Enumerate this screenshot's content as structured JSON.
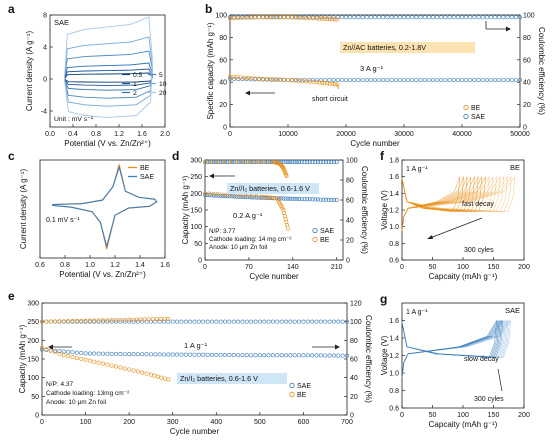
{
  "figure": {
    "panel_letters": [
      "a",
      "b",
      "c",
      "d",
      "e",
      "f",
      "g"
    ]
  },
  "colors": {
    "blue": "#3d7ebd",
    "blue_light": "#9cc3e6",
    "orange": "#e8901c",
    "orange_light": "#f3c27a",
    "label_box": "#fde3b2",
    "label_box_blue": "#cfe6f7"
  },
  "chart_data": [
    {
      "panel": "a",
      "type": "line",
      "xlabel": "Potential (V vs. Zn/Zn²⁺)",
      "ylabel": "Current density (A g⁻¹)",
      "xlim": [
        0.0,
        2.0
      ],
      "ylim": [
        -6,
        8
      ],
      "xticks": [
        "0.0",
        "0.4",
        "0.8",
        "1.2",
        "1.6",
        "2.0"
      ],
      "yticks": [
        "-4",
        "0",
        "4",
        "8"
      ],
      "tag": "SAE",
      "note": "Unit : mV s⁻¹",
      "legend": [
        "0.5",
        "1",
        "2",
        "5",
        "10",
        "20"
      ],
      "series": [
        {
          "name": "0.5",
          "upper": 0.6,
          "lower": -0.4
        },
        {
          "name": "1",
          "upper": 1.0,
          "lower": -0.8
        },
        {
          "name": "2",
          "upper": 1.6,
          "lower": -1.4
        },
        {
          "name": "5",
          "upper": 2.8,
          "lower": -2.4
        },
        {
          "name": "10",
          "upper": 4.2,
          "lower": -3.4
        },
        {
          "name": "20",
          "upper": 6.2,
          "lower": -4.8
        }
      ]
    },
    {
      "panel": "b",
      "type": "scatter",
      "xlabel": "Cycle number",
      "ylabel": "Specific capacity (mAh g⁻¹)",
      "ylabel_right": "Coulombic efficiency (%)",
      "xlim": [
        0,
        50000
      ],
      "ylim": [
        0,
        100
      ],
      "ylim_right": [
        0,
        100
      ],
      "xticks": [
        "0",
        "10000",
        "20000",
        "30000",
        "40000",
        "50000"
      ],
      "yticks": [
        "0",
        "20",
        "40",
        "60",
        "80",
        "100"
      ],
      "yticks_right": [
        "0",
        "20",
        "40",
        "60",
        "80",
        "100"
      ],
      "label_box": "Zn//AC batteries, 0.2-1.8V",
      "rate": "3 A g⁻¹",
      "annotation": "short circuit",
      "legend": [
        "BE",
        "SAE"
      ],
      "series": [
        {
          "name": "BE",
          "capacity": [
            [
              0,
              45
            ],
            [
              5000,
              43
            ],
            [
              10000,
              42
            ],
            [
              15000,
              40
            ],
            [
              18500,
              38
            ]
          ],
          "ce": [
            [
              0,
              97
            ],
            [
              5000,
              98
            ],
            [
              10000,
              98
            ],
            [
              15000,
              97
            ],
            [
              18500,
              96
            ]
          ]
        },
        {
          "name": "SAE",
          "capacity": [
            [
              0,
              43
            ],
            [
              10000,
              42
            ],
            [
              20000,
              42
            ],
            [
              30000,
              42
            ],
            [
              40000,
              42
            ],
            [
              50000,
              42
            ]
          ],
          "ce": [
            [
              0,
              98
            ],
            [
              10000,
              98
            ],
            [
              20000,
              98
            ],
            [
              30000,
              98
            ],
            [
              40000,
              98
            ],
            [
              50000,
              98
            ]
          ]
        }
      ]
    },
    {
      "panel": "c",
      "type": "line",
      "xlabel": "Potential (V vs. Zn/Zn²⁺)",
      "ylabel": "Current density (A g⁻¹)",
      "xlim": [
        0.5,
        1.7
      ],
      "ylim": [
        -0.6,
        0.5
      ],
      "xticks": [
        "0.6",
        "0.8",
        "1.0",
        "1.2",
        "1.4",
        "1.6"
      ],
      "note": "0.1 mV s⁻¹",
      "legend": [
        "BE",
        "SAE"
      ],
      "series": [
        {
          "name": "BE",
          "peak_ox": [
            1.26,
            0.45
          ],
          "peak_red": [
            1.14,
            -0.5
          ]
        },
        {
          "name": "SAE",
          "peak_ox": [
            1.26,
            0.42
          ],
          "peak_red": [
            1.14,
            -0.47
          ]
        }
      ]
    },
    {
      "panel": "d",
      "type": "scatter",
      "xlabel": "Cycle number",
      "ylabel": "Capacity (mAh g⁻¹)",
      "ylabel_right": "Coulombic efficiency (%)",
      "xlim": [
        0,
        220
      ],
      "ylim": [
        0,
        300
      ],
      "ylim_right": [
        0,
        100
      ],
      "xticks": [
        "0",
        "70",
        "140",
        "210"
      ],
      "yticks": [
        "0",
        "50",
        "100",
        "150",
        "200",
        "250",
        "300"
      ],
      "yticks_right": [
        "0",
        "20",
        "40",
        "60",
        "80",
        "100"
      ],
      "label_box": "Zn//I₂ batteries, 0.6-1.6 V",
      "rate": "0.2 A g⁻¹",
      "notes": [
        "N/P: 3.77",
        "Cathode loading: 14 mg cm⁻²",
        "Anode: 10 μm Zn foil"
      ],
      "legend": [
        "SAE",
        "BE"
      ],
      "series": [
        {
          "name": "SAE",
          "capacity": [
            [
              0,
              195
            ],
            [
              50,
              190
            ],
            [
              100,
              186
            ],
            [
              150,
              183
            ],
            [
              210,
              180
            ]
          ],
          "ce": [
            [
              0,
              98
            ],
            [
              50,
              98
            ],
            [
              100,
              98
            ],
            [
              150,
              98
            ],
            [
              210,
              98
            ]
          ]
        },
        {
          "name": "BE",
          "capacity": [
            [
              0,
              200
            ],
            [
              40,
              195
            ],
            [
              90,
              190
            ],
            [
              115,
              185
            ],
            [
              125,
              150
            ],
            [
              132,
              95
            ]
          ],
          "ce": [
            [
              0,
              98
            ],
            [
              60,
              98
            ],
            [
              110,
              98
            ],
            [
              120,
              96
            ],
            [
              125,
              92
            ],
            [
              130,
              84
            ]
          ]
        }
      ]
    },
    {
      "panel": "e",
      "type": "scatter",
      "xlabel": "Cycle number",
      "ylabel": "Capacity (mAh g⁻¹)",
      "ylabel_right": "Coulombic efficiency (%)",
      "xlim": [
        0,
        700
      ],
      "ylim": [
        0,
        300
      ],
      "ylim_right": [
        0,
        120
      ],
      "xticks": [
        "0",
        "100",
        "200",
        "300",
        "400",
        "500",
        "600",
        "700"
      ],
      "yticks": [
        "0",
        "50",
        "100",
        "150",
        "200",
        "250",
        "300"
      ],
      "yticks_right": [
        "0",
        "20",
        "40",
        "60",
        "80",
        "100",
        "120"
      ],
      "label_box": "Zn/I₂ batteries, 0.6-1.6 V",
      "rate": "1 A g⁻¹",
      "notes": [
        "N/P: 4.37",
        "Cathode loading: 13mg cm⁻²",
        "Anode: 10 μm Zn foil"
      ],
      "legend": [
        "SAE",
        "BE"
      ],
      "series": [
        {
          "name": "SAE",
          "capacity": [
            [
              0,
              175
            ],
            [
              100,
              165
            ],
            [
              200,
              163
            ],
            [
              300,
              162
            ],
            [
              400,
              161
            ],
            [
              500,
              160
            ],
            [
              600,
              160
            ],
            [
              700,
              159
            ]
          ],
          "ce": [
            [
              0,
              100
            ],
            [
              100,
              100
            ],
            [
              200,
              100
            ],
            [
              300,
              100
            ],
            [
              400,
              100
            ],
            [
              500,
              100
            ],
            [
              600,
              100
            ],
            [
              700,
              100
            ]
          ]
        },
        {
          "name": "BE",
          "capacity": [
            [
              0,
              180
            ],
            [
              50,
              160
            ],
            [
              100,
              148
            ],
            [
              150,
              135
            ],
            [
              200,
              122
            ],
            [
              250,
              108
            ],
            [
              290,
              95
            ]
          ],
          "ce": [
            [
              0,
              100
            ],
            [
              100,
              101
            ],
            [
              200,
              102
            ],
            [
              290,
              103
            ]
          ]
        }
      ]
    },
    {
      "panel": "f",
      "type": "line",
      "xlabel": "Capcaity (mAh g⁻¹)",
      "ylabel": "Voltage (V)",
      "xlim": [
        0,
        200
      ],
      "ylim": [
        0.6,
        1.8
      ],
      "xticks": [
        "0",
        "50",
        "100",
        "150",
        "200"
      ],
      "yticks": [
        "0.6",
        "0.8",
        "1.0",
        "1.2",
        "1.4",
        "1.6",
        "1.8"
      ],
      "tag": "BE",
      "rate": "1 A g⁻¹",
      "annotations": [
        "fast decay",
        "300 cyles"
      ],
      "series": [
        {
          "name": "BE",
          "capacity_first": 185,
          "capacity_last": 95,
          "plateau_charge": 1.22,
          "plateau_discharge": 1.18
        }
      ]
    },
    {
      "panel": "g",
      "type": "line",
      "xlabel": "Capcaity (mAh g⁻¹)",
      "ylabel": "Voltage (V)",
      "xlim": [
        0,
        200
      ],
      "ylim": [
        0.6,
        1.8
      ],
      "xticks": [
        "0",
        "50",
        "100",
        "150",
        "200"
      ],
      "yticks": [
        "0.6",
        "0.8",
        "1.0",
        "1.2",
        "1.4",
        "1.6"
      ],
      "tag": "SAE",
      "rate": "1 A g⁻¹",
      "annotations": [
        "slow decay",
        "300 cyles"
      ],
      "series": [
        {
          "name": "SAE",
          "capacity_first": 178,
          "capacity_last": 155,
          "plateau_charge": 1.22,
          "plateau_discharge": 1.18
        }
      ]
    }
  ]
}
